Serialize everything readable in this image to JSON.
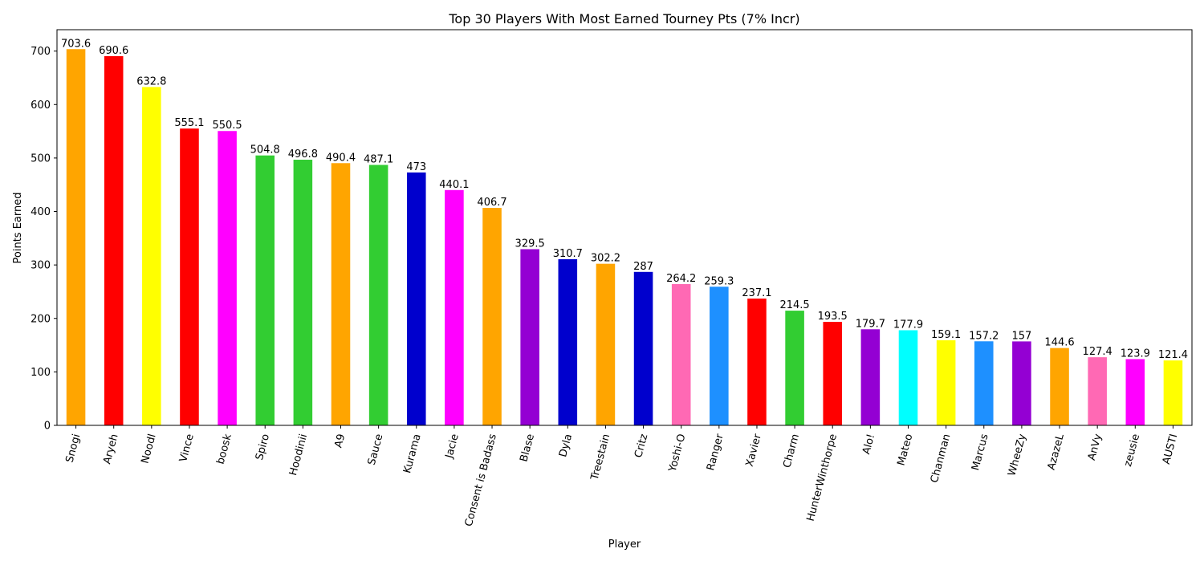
{
  "chart_data": {
    "type": "bar",
    "title": "Top 30 Players With Most Earned Tourney Pts (7% Incr)",
    "xlabel": "Player",
    "ylabel": "Points Earned",
    "ylim": [
      0,
      740
    ],
    "yticks": [
      0,
      100,
      200,
      300,
      400,
      500,
      600,
      700
    ],
    "grid": false,
    "categories": [
      "Snogi",
      "Aryeh",
      "Noodl",
      "Vince",
      "boosk",
      "Spiro",
      "Hoodinii",
      "A9",
      "Sauce",
      "Kurama",
      "Jacie",
      "Consent is Badass",
      "Blase",
      "Dyla",
      "Treestain",
      "Critz",
      "Yoshi-O",
      "Ranger",
      "Xavier",
      "Charm",
      "HunterWinthorpe",
      "Alo!",
      "Mateo",
      "Chanman",
      "Marcus",
      "WheeZy",
      "AzazeL",
      "AnVy",
      "zeusie",
      "AUSTI"
    ],
    "values": [
      703.6,
      690.6,
      632.8,
      555.1,
      550.5,
      504.8,
      496.8,
      490.4,
      487.1,
      473,
      440.1,
      406.7,
      329.5,
      310.7,
      302.2,
      287,
      264.2,
      259.3,
      237.1,
      214.5,
      193.5,
      179.7,
      177.9,
      159.1,
      157.2,
      157,
      144.6,
      127.4,
      123.9,
      121.4
    ],
    "value_labels": [
      "703.6",
      "690.6",
      "632.8",
      "555.1",
      "550.5",
      "504.8",
      "496.8",
      "490.4",
      "487.1",
      "473",
      "440.1",
      "406.7",
      "329.5",
      "310.7",
      "302.2",
      "287",
      "264.2",
      "259.3",
      "237.1",
      "214.5",
      "193.5",
      "179.7",
      "177.9",
      "159.1",
      "157.2",
      "157",
      "144.6",
      "127.4",
      "123.9",
      "121.4"
    ],
    "colors": [
      "#FFA500",
      "#FF0000",
      "#FFFF00",
      "#FF0000",
      "#FF00FF",
      "#32CD32",
      "#32CD32",
      "#FFA500",
      "#32CD32",
      "#0000CD",
      "#FF00FF",
      "#FFA500",
      "#9400D3",
      "#0000CD",
      "#FFA500",
      "#0000CD",
      "#FF69B4",
      "#1E90FF",
      "#FF0000",
      "#32CD32",
      "#FF0000",
      "#9400D3",
      "#00FFFF",
      "#FFFF00",
      "#1E90FF",
      "#9400D3",
      "#FFA500",
      "#FF69B4",
      "#FF00FF",
      "#FFFF00"
    ]
  }
}
